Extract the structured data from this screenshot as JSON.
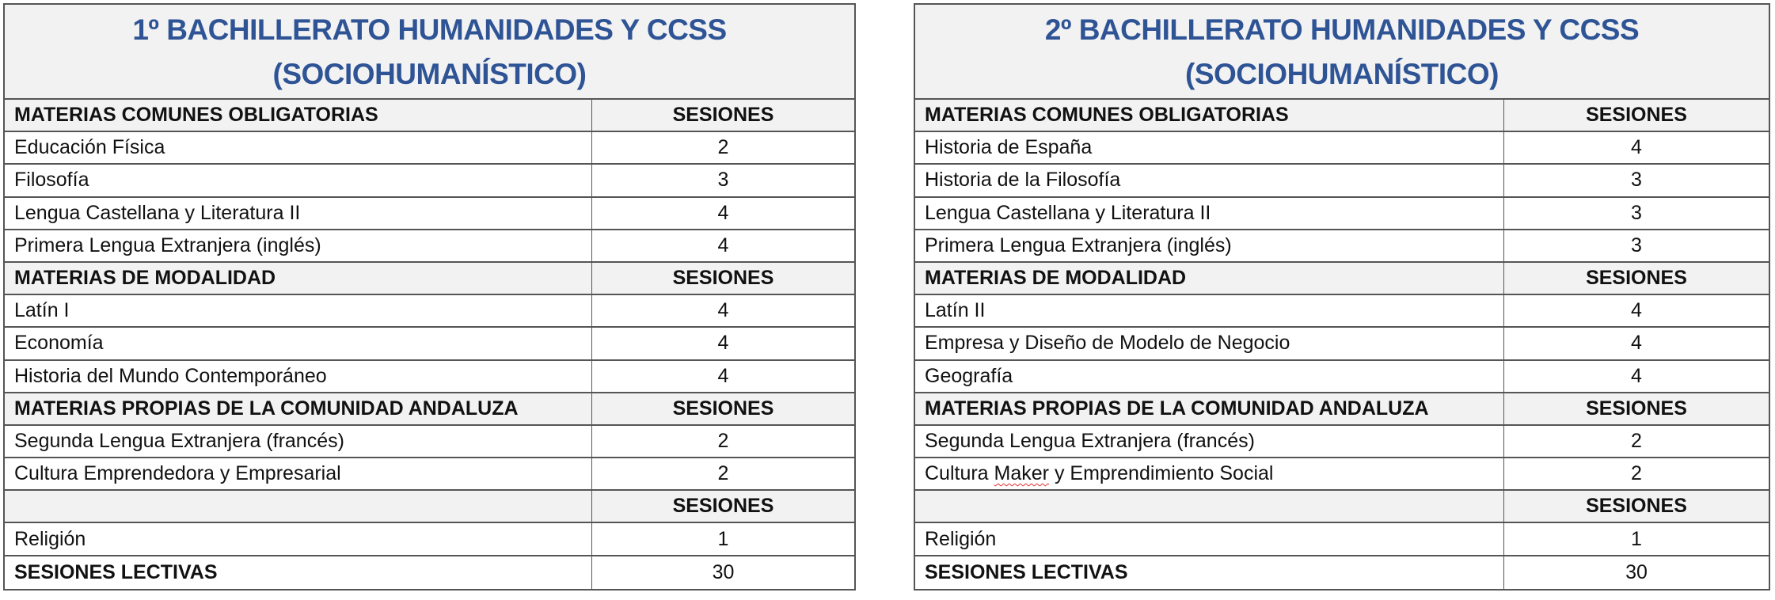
{
  "tables": [
    {
      "title_line1": "1º BACHILLERATO HUMANIDADES Y CCSS",
      "title_line2": "(SOCIOHUMANÍSTICO)",
      "rows": [
        {
          "type": "header",
          "name": "MATERIAS COMUNES OBLIGATORIAS",
          "value": "SESIONES"
        },
        {
          "type": "item",
          "name": "Educación Física",
          "value": "2"
        },
        {
          "type": "item",
          "name": "Filosofía",
          "value": "3"
        },
        {
          "type": "item",
          "name": "Lengua Castellana y Literatura II",
          "value": "4"
        },
        {
          "type": "item",
          "name": "Primera Lengua Extranjera (inglés)",
          "value": "4"
        },
        {
          "type": "header",
          "name": "MATERIAS DE MODALIDAD",
          "value": "SESIONES"
        },
        {
          "type": "item",
          "name": "Latín I",
          "value": "4"
        },
        {
          "type": "item",
          "name": "Economía",
          "value": "4"
        },
        {
          "type": "item",
          "name": "Historia del Mundo Contemporáneo",
          "value": "4"
        },
        {
          "type": "header",
          "name": "MATERIAS PROPIAS DE LA COMUNIDAD ANDALUZA",
          "value": "SESIONES"
        },
        {
          "type": "item",
          "name": "Segunda Lengua Extranjera (francés)",
          "value": "2"
        },
        {
          "type": "item",
          "name": "Cultura Emprendedora y Empresarial",
          "value": "2"
        },
        {
          "type": "header",
          "name": "",
          "value": "SESIONES"
        },
        {
          "type": "item",
          "name": "Religión",
          "value": "1"
        },
        {
          "type": "total",
          "name": "SESIONES LECTIVAS",
          "value": "30"
        }
      ]
    },
    {
      "title_line1": "2º BACHILLERATO HUMANIDADES Y CCSS",
      "title_line2": "(SOCIOHUMANÍSTICO)",
      "rows": [
        {
          "type": "header",
          "name": "MATERIAS COMUNES OBLIGATORIAS",
          "value": "SESIONES"
        },
        {
          "type": "item",
          "name": "Historia de España",
          "value": "4"
        },
        {
          "type": "item",
          "name": "Historia de la Filosofía",
          "value": "3"
        },
        {
          "type": "item",
          "name": "Lengua Castellana y Literatura II",
          "value": "3"
        },
        {
          "type": "item",
          "name": "Primera Lengua Extranjera (inglés)",
          "value": "3"
        },
        {
          "type": "header",
          "name": "MATERIAS DE MODALIDAD",
          "value": "SESIONES"
        },
        {
          "type": "item",
          "name": "Latín II",
          "value": "4"
        },
        {
          "type": "item",
          "name": "Empresa y Diseño de Modelo de Negocio",
          "value": "4"
        },
        {
          "type": "item",
          "name": "Geografía",
          "value": "4"
        },
        {
          "type": "header",
          "name": "MATERIAS PROPIAS DE LA COMUNIDAD ANDALUZA",
          "value": "SESIONES"
        },
        {
          "type": "item",
          "name": "Segunda Lengua Extranjera (francés)",
          "value": "2"
        },
        {
          "type": "item",
          "name": "Cultura Maker y Emprendimiento Social",
          "value": "2",
          "spellcheck_word": "Maker"
        },
        {
          "type": "header",
          "name": "",
          "value": "SESIONES"
        },
        {
          "type": "item",
          "name": "Religión",
          "value": "1"
        },
        {
          "type": "total",
          "name": "SESIONES LECTIVAS",
          "value": "30"
        }
      ]
    }
  ],
  "colors": {
    "title": "#2f5496",
    "header_bg": "#f2f2f2",
    "border": "#555555",
    "spellcheck": "#e03030"
  }
}
